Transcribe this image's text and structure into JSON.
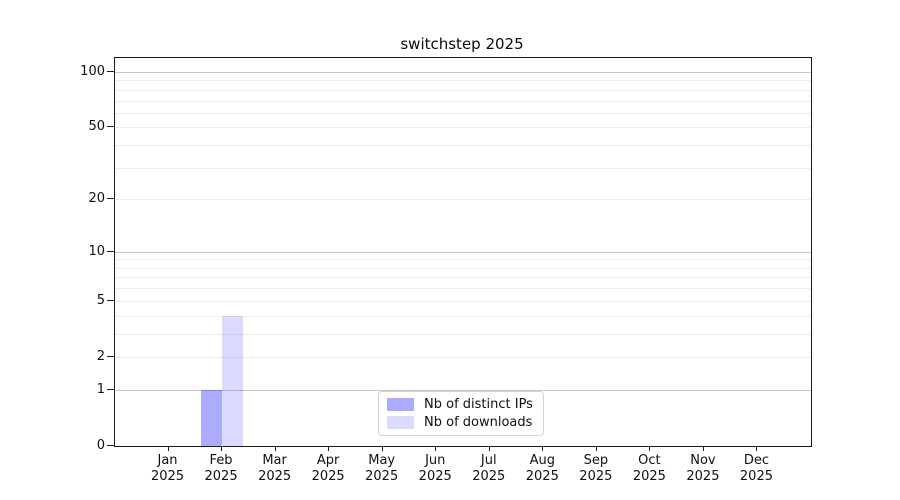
{
  "chart_data": {
    "type": "bar",
    "title": "switchstep 2025",
    "year": "2025",
    "categories": [
      "Jan",
      "Feb",
      "Mar",
      "Apr",
      "May",
      "Jun",
      "Jul",
      "Aug",
      "Sep",
      "Oct",
      "Nov",
      "Dec"
    ],
    "series": [
      {
        "name": "Nb of distinct IPs",
        "color": "rgba(0,0,255,0.33)",
        "hex_on_white": "#ababf8",
        "values": [
          0,
          1,
          0,
          0,
          0,
          0,
          0,
          0,
          0,
          0,
          0,
          0
        ]
      },
      {
        "name": "Nb of downloads",
        "color": "rgba(0,0,255,0.14)",
        "hex_on_white": "#dbdbf8",
        "values": [
          0,
          4,
          0,
          0,
          0,
          0,
          0,
          0,
          0,
          0,
          0,
          0
        ]
      }
    ],
    "xlabel": "",
    "ylabel": "",
    "y_scale": "log10(1+x)",
    "ylim": [
      0,
      119
    ],
    "y_tick_values": [
      0,
      1,
      2,
      5,
      10,
      20,
      50,
      100
    ],
    "y_major_gridlines": [
      1,
      10,
      100
    ],
    "y_minor_gridlines": [
      2,
      3,
      4,
      5,
      6,
      7,
      8,
      9,
      20,
      30,
      40,
      50,
      60,
      70,
      80,
      90
    ],
    "grid": true,
    "legend_position": "lower center, inside plot"
  },
  "colors": {
    "background": "#ffffff",
    "axis_spine": "#1a1a1a",
    "major_gridline": "#c8c8c8",
    "minor_gridline": "#ededed",
    "legend_border": "#d2d2d2",
    "text": "#111111"
  }
}
